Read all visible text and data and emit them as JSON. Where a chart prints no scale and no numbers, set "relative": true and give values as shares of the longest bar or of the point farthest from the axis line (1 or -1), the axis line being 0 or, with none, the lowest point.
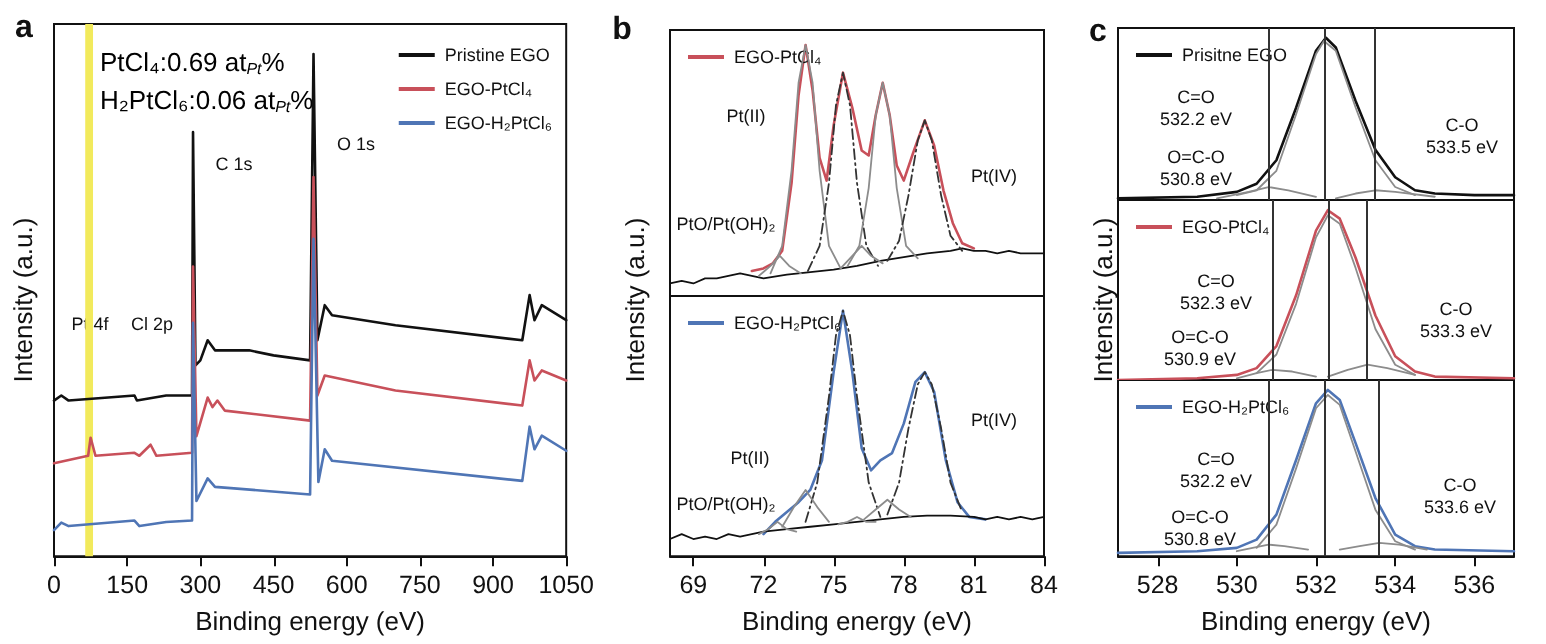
{
  "chart_data": [
    {
      "type": "line",
      "relative": true,
      "marker": "none",
      "legend": "top right",
      "xlabel": "Binding energy (eV)",
      "ylabel": "Intensity (a.u.)",
      "xlim": [
        0,
        1050
      ],
      "xticks": [
        0,
        150,
        300,
        450,
        600,
        750,
        900,
        1050
      ],
      "tick_labels": "x",
      "annotations": [
        "a",
        "PtCl₄:0.69 at$_{Pt}$%",
        "H₂PtCl₆:0.06 at$_{Pt}$%",
        "C 1s",
        "O 1s",
        "Pt 4f",
        "Cl 2p"
      ],
      "bands": [
        {
          "axis": "x",
          "from": 64,
          "to": 80,
          "color": "#f2ea5c"
        }
      ],
      "series": [
        {
          "name": "Pristine EGO",
          "color": "#111111",
          "x": [
            0,
            15,
            30,
            165,
            170,
            230,
            283,
            285,
            290,
            300,
            315,
            330,
            400,
            450,
            525,
            532,
            540,
            555,
            570,
            700,
            960,
            975,
            985,
            1000,
            1050
          ],
          "values": [
            0.31,
            0.32,
            0.31,
            0.32,
            0.31,
            0.32,
            0.32,
            0.845,
            0.38,
            0.39,
            0.43,
            0.41,
            0.41,
            0.4,
            0.39,
            1.0,
            0.43,
            0.5,
            0.48,
            0.46,
            0.43,
            0.52,
            0.47,
            0.5,
            0.47
          ]
        },
        {
          "name": "EGO-PtCl₄",
          "color": "#c8505a",
          "x": [
            0,
            70,
            75,
            85,
            165,
            175,
            198,
            210,
            283,
            285,
            292,
            315,
            325,
            335,
            350,
            525,
            532,
            540,
            555,
            700,
            960,
            975,
            985,
            1000,
            1050
          ],
          "values": [
            0.185,
            0.2,
            0.236,
            0.2,
            0.206,
            0.2,
            0.222,
            0.2,
            0.206,
            0.577,
            0.239,
            0.316,
            0.297,
            0.31,
            0.29,
            0.27,
            0.755,
            0.32,
            0.36,
            0.33,
            0.3,
            0.39,
            0.35,
            0.37,
            0.35
          ]
        },
        {
          "name": "EGO-H₂PtCl₆",
          "color": "#4f75b5",
          "x": [
            0,
            15,
            30,
            165,
            175,
            230,
            283,
            285,
            292,
            315,
            330,
            525,
            532,
            542,
            555,
            570,
            960,
            975,
            985,
            1000,
            1050
          ],
          "values": [
            0.052,
            0.067,
            0.06,
            0.071,
            0.06,
            0.068,
            0.071,
            0.465,
            0.11,
            0.155,
            0.138,
            0.123,
            0.632,
            0.148,
            0.213,
            0.19,
            0.15,
            0.258,
            0.213,
            0.24,
            0.21
          ]
        }
      ]
    },
    {
      "type": "line",
      "relative": true,
      "marker": "none",
      "legend": "top left",
      "ylabel": "Intensity (a.u.)",
      "xlim": [
        68,
        84
      ],
      "tick_labels": false,
      "annotations": [
        "b",
        "Pt(II)",
        "Pt(IV)",
        "PtO/Pt(OH)₂"
      ],
      "series": [
        {
          "name": "EGO-PtCl₄",
          "color": "#c8505a",
          "x": [
            71.5,
            72,
            72.4,
            72.8,
            73.2,
            73.5,
            73.8,
            74.1,
            74.4,
            74.7,
            75.0,
            75.4,
            75.8,
            76.2,
            76.5,
            76.8,
            77.1,
            77.4,
            77.7,
            78.0,
            78.4,
            78.9,
            79.3,
            79.7,
            80.1,
            80.5,
            81
          ],
          "values": [
            0.1,
            0.11,
            0.13,
            0.18,
            0.45,
            0.8,
            1.0,
            0.82,
            0.55,
            0.46,
            0.68,
            0.89,
            0.75,
            0.58,
            0.56,
            0.72,
            0.85,
            0.72,
            0.52,
            0.46,
            0.57,
            0.7,
            0.6,
            0.42,
            0.29,
            0.21,
            0.19
          ]
        },
        {
          "color": "#111111",
          "x": [
            68,
            68.5,
            69,
            69.5,
            70,
            70.5,
            71,
            71.5,
            72,
            73,
            74,
            75,
            76,
            77,
            78,
            79,
            80,
            80.5,
            81,
            81.5,
            82,
            82.5,
            83,
            83.5,
            84
          ],
          "values": [
            0.05,
            0.06,
            0.05,
            0.07,
            0.07,
            0.08,
            0.09,
            0.08,
            0.07,
            0.085,
            0.095,
            0.105,
            0.12,
            0.14,
            0.155,
            0.17,
            0.18,
            0.19,
            0.18,
            0.18,
            0.17,
            0.18,
            0.17,
            0.17,
            0.17
          ]
        },
        {
          "color": "#8c8c8c",
          "x": [
            72.3,
            72.8,
            73.2,
            73.5,
            73.8,
            74.1,
            74.4,
            74.8,
            75.3
          ],
          "values": [
            0.09,
            0.2,
            0.5,
            0.85,
            1.0,
            0.85,
            0.5,
            0.2,
            0.11
          ]
        },
        {
          "color": "#333333",
          "line_style": "dashed",
          "x": [
            73.9,
            74.4,
            74.8,
            75.1,
            75.4,
            75.7,
            76.0,
            76.4,
            76.9
          ],
          "values": [
            0.1,
            0.2,
            0.45,
            0.76,
            0.89,
            0.76,
            0.45,
            0.2,
            0.12
          ]
        },
        {
          "color": "#8c8c8c",
          "x": [
            75.6,
            76.1,
            76.5,
            76.8,
            77.1,
            77.4,
            77.7,
            78.1,
            78.6
          ],
          "values": [
            0.12,
            0.2,
            0.43,
            0.72,
            0.85,
            0.72,
            0.43,
            0.2,
            0.15
          ]
        },
        {
          "color": "#333333",
          "line_style": "dashed",
          "x": [
            77.3,
            77.8,
            78.2,
            78.6,
            78.9,
            79.2,
            79.6,
            80.0,
            80.5
          ],
          "values": [
            0.14,
            0.22,
            0.4,
            0.62,
            0.7,
            0.62,
            0.4,
            0.24,
            0.18
          ]
        },
        {
          "color": "#8c8c8c",
          "x": [
            71.8,
            72.3,
            72.7,
            73.1,
            73.6
          ],
          "values": [
            0.08,
            0.12,
            0.16,
            0.12,
            0.09
          ]
        },
        {
          "color": "#8c8c8c",
          "x": [
            75.3,
            75.8,
            76.2,
            76.6,
            77.1
          ],
          "values": [
            0.11,
            0.16,
            0.2,
            0.16,
            0.13
          ]
        }
      ]
    },
    {
      "type": "line",
      "relative": true,
      "marker": "none",
      "legend": "top left",
      "xlabel": "Binding energy (eV)",
      "xlim": [
        68,
        84
      ],
      "xticks": [
        69,
        72,
        75,
        78,
        81,
        84
      ],
      "tick_labels": "x",
      "annotations": [
        "Pt(IV)",
        "Pt(II)",
        "PtO/Pt(OH)₂"
      ],
      "series": [
        {
          "name": "EGO-H₂PtCl₆",
          "color": "#4f75b5",
          "x": [
            72,
            72.5,
            73,
            73.5,
            74,
            74.5,
            75,
            75.4,
            75.8,
            76.2,
            76.6,
            77,
            77.5,
            78,
            78.5,
            78.9,
            79.3,
            79.8,
            80.3,
            80.8,
            81.5
          ],
          "values": [
            0.09,
            0.14,
            0.18,
            0.22,
            0.27,
            0.39,
            0.75,
            1.0,
            0.75,
            0.44,
            0.35,
            0.39,
            0.42,
            0.54,
            0.71,
            0.75,
            0.67,
            0.39,
            0.22,
            0.16,
            0.15
          ]
        },
        {
          "color": "#111111",
          "x": [
            68,
            68.5,
            69,
            69.5,
            70,
            70.5,
            71,
            71.5,
            72,
            73,
            74,
            75,
            76,
            77,
            78,
            79,
            80,
            81,
            81.5,
            82,
            82.5,
            83,
            83.5,
            84
          ],
          "values": [
            0.07,
            0.09,
            0.07,
            0.08,
            0.07,
            0.09,
            0.08,
            0.09,
            0.1,
            0.11,
            0.12,
            0.13,
            0.14,
            0.15,
            0.16,
            0.165,
            0.165,
            0.16,
            0.15,
            0.16,
            0.15,
            0.16,
            0.15,
            0.16
          ]
        },
        {
          "color": "#333333",
          "line_style": "dashed",
          "x": [
            73.8,
            74.3,
            74.8,
            75.1,
            75.4,
            75.7,
            76.0,
            76.5,
            77.0
          ],
          "values": [
            0.14,
            0.3,
            0.65,
            0.9,
            1.0,
            0.9,
            0.65,
            0.3,
            0.16
          ]
        },
        {
          "color": "#333333",
          "line_style": "dashed",
          "x": [
            77.3,
            77.8,
            78.2,
            78.6,
            78.9,
            79.2,
            79.6,
            80.0,
            80.5
          ],
          "values": [
            0.17,
            0.3,
            0.52,
            0.7,
            0.75,
            0.7,
            0.52,
            0.3,
            0.18
          ]
        },
        {
          "color": "#8c8c8c",
          "x": [
            72.8,
            73.3,
            73.8,
            74.3,
            74.8
          ],
          "values": [
            0.12,
            0.2,
            0.27,
            0.2,
            0.14
          ]
        },
        {
          "color": "#8c8c8c",
          "x": [
            76.3,
            76.8,
            77.3,
            77.8,
            78.3
          ],
          "values": [
            0.15,
            0.19,
            0.23,
            0.19,
            0.16
          ]
        },
        {
          "color": "#8c8c8c",
          "x": [
            71.8,
            72.2,
            72.6,
            73.0,
            73.4
          ],
          "values": [
            0.09,
            0.11,
            0.14,
            0.11,
            0.1
          ]
        },
        {
          "color": "#8c8c8c",
          "x": [
            75.2,
            75.6,
            76.0,
            76.4,
            76.8
          ],
          "values": [
            0.13,
            0.14,
            0.16,
            0.14,
            0.14
          ]
        }
      ]
    },
    {
      "type": "line",
      "relative": true,
      "marker": "none",
      "legend": "top left",
      "ylabel": "Intensity (a.u.)",
      "xlim": [
        527,
        537
      ],
      "tick_labels": false,
      "annotations": [
        "c",
        "C=O\n532.2 eV",
        "C-O\n533.5 eV",
        "O=C-O\n530.8 eV"
      ],
      "ref_lines": [
        {
          "axis": "x",
          "value": 532.2,
          "color": "#333333"
        },
        {
          "axis": "x",
          "value": 530.8,
          "color": "#333333"
        },
        {
          "axis": "x",
          "value": 533.5,
          "color": "#333333"
        }
      ],
      "series": [
        {
          "name": "Prisitne EGO",
          "color": "#111111",
          "x": [
            527,
            529,
            530,
            530.5,
            531,
            531.5,
            532,
            532.25,
            532.5,
            533,
            533.5,
            534,
            534.5,
            535,
            536,
            537
          ],
          "values": [
            0.01,
            0.02,
            0.05,
            0.1,
            0.245,
            0.57,
            0.92,
            1.0,
            0.94,
            0.61,
            0.31,
            0.14,
            0.06,
            0.04,
            0.03,
            0.03
          ]
        },
        {
          "color": "#8c8c8c",
          "x": [
            530,
            530.5,
            531,
            531.5,
            532,
            532.2,
            532.5,
            533,
            533.5,
            534,
            534.5
          ],
          "values": [
            0.03,
            0.06,
            0.18,
            0.53,
            0.9,
            0.98,
            0.92,
            0.57,
            0.245,
            0.08,
            0.03
          ]
        },
        {
          "color": "#8c8c8c",
          "x": [
            529.5,
            530.3,
            530.8,
            531.3,
            532
          ],
          "values": [
            0.01,
            0.05,
            0.08,
            0.06,
            0.02
          ]
        },
        {
          "color": "#8c8c8c",
          "x": [
            532.5,
            533,
            533.5,
            534,
            535
          ],
          "values": [
            0.01,
            0.04,
            0.06,
            0.05,
            0.02
          ]
        }
      ]
    },
    {
      "type": "line",
      "relative": true,
      "marker": "none",
      "legend": "top left",
      "xlim": [
        527,
        537
      ],
      "tick_labels": false,
      "annotations": [
        "C=O\n532.3 eV",
        "C-O\n533.3 eV",
        "O=C-O\n530.9 eV"
      ],
      "ref_lines": [
        {
          "axis": "x",
          "value": 532.3,
          "color": "#333333"
        },
        {
          "axis": "x",
          "value": 530.9,
          "color": "#333333"
        },
        {
          "axis": "x",
          "value": 533.3,
          "color": "#333333"
        }
      ],
      "series": [
        {
          "name": "EGO-PtCl₄",
          "color": "#c8505a",
          "x": [
            527,
            529,
            530,
            530.5,
            531,
            531.5,
            532,
            532.3,
            532.6,
            533,
            533.5,
            534,
            534.5,
            535,
            537
          ],
          "values": [
            0.0,
            0.01,
            0.03,
            0.07,
            0.2,
            0.5,
            0.88,
            1.0,
            0.95,
            0.72,
            0.38,
            0.14,
            0.05,
            0.02,
            0.01
          ]
        },
        {
          "color": "#8c8c8c",
          "x": [
            530.5,
            531,
            531.5,
            532,
            532.3,
            532.6,
            533,
            533.5,
            534,
            534.5
          ],
          "values": [
            0.04,
            0.15,
            0.45,
            0.84,
            0.97,
            0.92,
            0.66,
            0.3,
            0.09,
            0.03
          ]
        },
        {
          "color": "#8c8c8c",
          "x": [
            530,
            530.5,
            530.9,
            531.4,
            532
          ],
          "values": [
            0.01,
            0.04,
            0.06,
            0.05,
            0.02
          ]
        },
        {
          "color": "#8c8c8c",
          "x": [
            532.3,
            532.8,
            533.3,
            533.8,
            534.5
          ],
          "values": [
            0.02,
            0.06,
            0.09,
            0.07,
            0.03
          ]
        }
      ]
    },
    {
      "type": "line",
      "relative": true,
      "marker": "none",
      "legend": "top left",
      "xlabel": "Binding energy (eV)",
      "xlim": [
        527,
        537
      ],
      "xticks": [
        528,
        530,
        532,
        534,
        536
      ],
      "tick_labels": "x",
      "annotations": [
        "C=O\n532.2 eV",
        "C-O\n533.6 eV",
        "O=C-O\n530.8 eV"
      ],
      "ref_lines": [
        {
          "axis": "x",
          "value": 532.2,
          "color": "#333333"
        },
        {
          "axis": "x",
          "value": 530.8,
          "color": "#333333"
        },
        {
          "axis": "x",
          "value": 533.6,
          "color": "#333333"
        }
      ],
      "series": [
        {
          "name": "EGO-H₂PtCl₆",
          "color": "#4f75b5",
          "x": [
            527,
            529,
            530,
            530.5,
            531,
            531.5,
            532,
            532.3,
            532.6,
            533,
            533.5,
            534,
            534.5,
            535,
            537
          ],
          "values": [
            0.02,
            0.03,
            0.05,
            0.1,
            0.25,
            0.58,
            0.92,
            1.0,
            0.94,
            0.68,
            0.35,
            0.13,
            0.06,
            0.04,
            0.03
          ]
        },
        {
          "color": "#8c8c8c",
          "x": [
            530.5,
            531,
            531.5,
            532,
            532.3,
            532.6,
            533,
            533.5,
            534,
            534.5
          ],
          "values": [
            0.05,
            0.19,
            0.53,
            0.89,
            0.97,
            0.91,
            0.63,
            0.28,
            0.09,
            0.04
          ]
        },
        {
          "color": "#8c8c8c",
          "x": [
            530,
            530.4,
            530.8,
            531.2,
            531.8
          ],
          "values": [
            0.03,
            0.05,
            0.07,
            0.06,
            0.04
          ]
        },
        {
          "color": "#8c8c8c",
          "x": [
            532.6,
            533.1,
            533.6,
            534.1,
            534.8
          ],
          "values": [
            0.04,
            0.06,
            0.08,
            0.07,
            0.04
          ]
        }
      ]
    }
  ]
}
